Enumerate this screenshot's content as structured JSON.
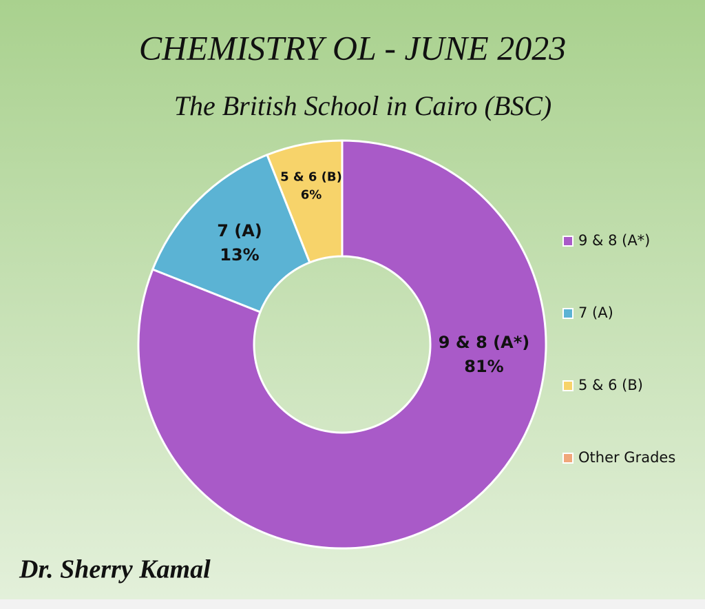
{
  "chart_data": {
    "type": "donut",
    "title": "CHEMISTRY OL - JUNE 2023",
    "subtitle": "The British School in Cairo (BSC)",
    "author": "Dr. Sherry Kamal",
    "categories": [
      "9 & 8 (A*)",
      "7 (A)",
      "5 & 6 (B)",
      "Other Grades"
    ],
    "values": [
      81,
      13,
      6,
      0
    ],
    "value_labels": [
      "81%",
      "13%",
      "6%",
      null
    ],
    "colors": [
      "#a95ac8",
      "#5bb3d4",
      "#f7d36a",
      "#f0a77a"
    ],
    "legend": "right"
  }
}
